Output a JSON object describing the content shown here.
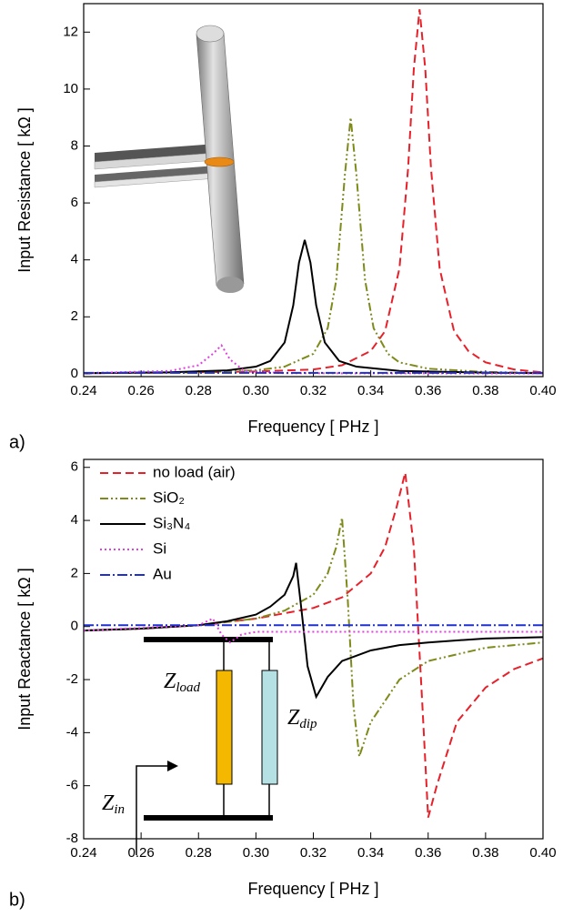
{
  "chart_data": [
    {
      "type": "line",
      "panel_label": "a)",
      "x_label": "Frequency [ PHz ]",
      "y_label": "Input Resistance [ kΩ ]",
      "xlim": [
        0.24,
        0.4
      ],
      "ylim": [
        -0.1,
        13
      ],
      "xticks": [
        0.24,
        0.26,
        0.28,
        {
          "value": 0.3,
          "label": "0.30"
        },
        0.32,
        0.34,
        0.36,
        0.38,
        {
          "value": 0.4,
          "label": "0.40"
        }
      ],
      "yticks": [
        0,
        2,
        4,
        6,
        8,
        10,
        12
      ],
      "series": [
        {
          "color": "#e8202a",
          "linestyle": "dashed",
          "x": [
            0.24,
            0.28,
            0.3,
            0.32,
            0.33,
            0.34,
            0.345,
            0.35,
            0.353,
            0.355,
            0.357,
            0.359,
            0.361,
            0.364,
            0.369,
            0.374,
            0.38,
            0.39,
            0.4
          ],
          "values": [
            0.02,
            0.05,
            0.08,
            0.15,
            0.3,
            0.8,
            1.5,
            3.7,
            7.2,
            10.7,
            12.8,
            10.7,
            7.2,
            3.7,
            1.5,
            0.8,
            0.4,
            0.15,
            0.05
          ]
        },
        {
          "color": "#7f8a1a",
          "linestyle": "dashdotdot",
          "x": [
            0.24,
            0.28,
            0.3,
            0.31,
            0.32,
            0.325,
            0.328,
            0.331,
            0.333,
            0.335,
            0.338,
            0.341,
            0.346,
            0.35,
            0.36,
            0.38,
            0.4
          ],
          "values": [
            0.02,
            0.05,
            0.12,
            0.25,
            0.7,
            1.6,
            3.3,
            7.0,
            9.0,
            7.0,
            3.3,
            1.6,
            0.7,
            0.4,
            0.18,
            0.06,
            0.03
          ]
        },
        {
          "color": "#000000",
          "linestyle": "solid",
          "x": [
            0.24,
            0.27,
            0.29,
            0.3,
            0.305,
            0.31,
            0.313,
            0.315,
            0.317,
            0.319,
            0.321,
            0.324,
            0.329,
            0.335,
            0.35,
            0.38,
            0.4
          ],
          "values": [
            0.02,
            0.05,
            0.12,
            0.25,
            0.45,
            1.1,
            2.4,
            3.9,
            4.7,
            3.9,
            2.4,
            1.1,
            0.45,
            0.25,
            0.1,
            0.04,
            0.02
          ]
        },
        {
          "color": "#e040e0",
          "linestyle": "dotted",
          "x": [
            0.24,
            0.27,
            0.28,
            0.285,
            0.288,
            0.291,
            0.296,
            0.31,
            0.4
          ],
          "values": [
            0.02,
            0.1,
            0.3,
            0.7,
            1.0,
            0.5,
            0.1,
            0.02,
            0.01
          ]
        },
        {
          "color": "#2030d0",
          "linestyle": "dashdot",
          "x": [
            0.24,
            0.4
          ],
          "values": [
            0.03,
            0.03
          ]
        }
      ]
    },
    {
      "type": "line",
      "panel_label": "b)",
      "x_label": "Frequency [ PHz ]",
      "y_label": "Input Reactance [ kΩ ]",
      "xlim": [
        0.24,
        0.4
      ],
      "ylim": [
        -8,
        6.3
      ],
      "xticks": [
        0.24,
        0.26,
        0.28,
        {
          "value": 0.3,
          "label": "0.30"
        },
        0.32,
        0.34,
        0.36,
        0.38,
        {
          "value": 0.4,
          "label": "0.40"
        }
      ],
      "yticks": [
        -8,
        -6,
        -4,
        -2,
        0,
        2,
        4,
        6
      ],
      "legend": "upper left",
      "annotations": [
        {
          "text": "Z",
          "subscript": "load"
        },
        {
          "text": "Z",
          "subscript": "dip"
        },
        {
          "text": "Z",
          "subscript": "in"
        }
      ],
      "series": [
        {
          "name": "no load (air)",
          "color": "#e8202a",
          "linestyle": "dashed",
          "x": [
            0.24,
            0.26,
            0.28,
            0.3,
            0.32,
            0.33,
            0.34,
            0.345,
            0.349,
            0.352,
            0.355,
            0.358,
            0.36,
            0.363,
            0.37,
            0.38,
            0.39,
            0.4
          ],
          "values": [
            -0.15,
            -0.08,
            0.05,
            0.3,
            0.7,
            1.1,
            2.0,
            3.0,
            4.5,
            5.8,
            3.0,
            -3.0,
            -7.2,
            -6.0,
            -3.6,
            -2.3,
            -1.6,
            -1.2
          ]
        },
        {
          "name": "SiO₂",
          "color": "#7f8a1a",
          "linestyle": "dashdotdot",
          "x": [
            0.24,
            0.26,
            0.28,
            0.3,
            0.31,
            0.32,
            0.325,
            0.328,
            0.33,
            0.332,
            0.334,
            0.336,
            0.34,
            0.35,
            0.36,
            0.38,
            0.4
          ],
          "values": [
            -0.15,
            -0.08,
            0.05,
            0.3,
            0.6,
            1.2,
            2.0,
            3.0,
            4.1,
            1.0,
            -3.0,
            -4.9,
            -3.6,
            -2.0,
            -1.3,
            -0.8,
            -0.6
          ]
        },
        {
          "name": "Si₃N₄",
          "color": "#000000",
          "linestyle": "solid",
          "x": [
            0.24,
            0.26,
            0.28,
            0.29,
            0.3,
            0.305,
            0.31,
            0.313,
            0.314,
            0.316,
            0.318,
            0.321,
            0.325,
            0.33,
            0.34,
            0.35,
            0.36,
            0.38,
            0.4
          ],
          "values": [
            -0.15,
            -0.08,
            0.05,
            0.2,
            0.45,
            0.75,
            1.2,
            1.9,
            2.4,
            0.5,
            -1.5,
            -2.65,
            -1.9,
            -1.3,
            -0.9,
            -0.7,
            -0.6,
            -0.45,
            -0.4
          ]
        },
        {
          "name": "Si",
          "color": "#e040e0",
          "linestyle": "dotted",
          "x": [
            0.24,
            0.28,
            0.285,
            0.288,
            0.291,
            0.295,
            0.3,
            0.4
          ],
          "values": [
            -0.15,
            0.05,
            0.3,
            -0.3,
            -0.6,
            -0.3,
            -0.2,
            -0.2
          ]
        },
        {
          "name": "Au",
          "color": "#2030d0",
          "linestyle": "dashdot",
          "x": [
            0.24,
            0.4
          ],
          "values": [
            0.05,
            0.05
          ]
        }
      ]
    }
  ]
}
